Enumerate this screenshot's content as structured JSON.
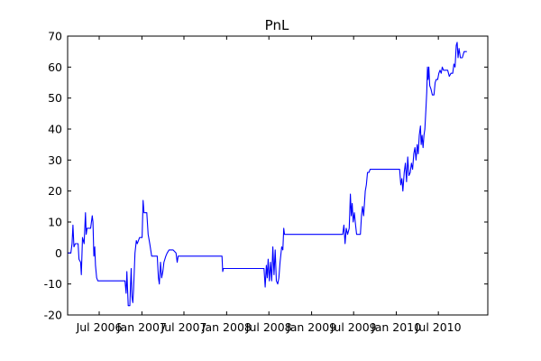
{
  "chart_data": {
    "type": "line",
    "title": "PnL",
    "xlabel": "",
    "ylabel": "",
    "grid": false,
    "ylim": [
      -20,
      70
    ],
    "xlim": [
      "2006-02-15",
      "2011-01-30"
    ],
    "yticks": [
      -20,
      -10,
      0,
      10,
      20,
      30,
      40,
      50,
      60,
      70
    ],
    "xticks": [
      {
        "date": "2006-07-01",
        "label": "Jul 2006"
      },
      {
        "date": "2007-01-01",
        "label": "Jan 2007"
      },
      {
        "date": "2007-07-01",
        "label": "Jul 2007"
      },
      {
        "date": "2008-01-01",
        "label": "Jan 2008"
      },
      {
        "date": "2008-07-01",
        "label": "Jul 2008"
      },
      {
        "date": "2009-01-01",
        "label": "Jan 2009"
      },
      {
        "date": "2009-07-01",
        "label": "Jul 2009"
      },
      {
        "date": "2010-01-01",
        "label": "Jan 2010"
      },
      {
        "date": "2010-07-01",
        "label": "Jul 2010"
      }
    ],
    "series": [
      {
        "color": "#0000ff",
        "points": [
          [
            "2006-02-15",
            0
          ],
          [
            "2006-03-01",
            0
          ],
          [
            "2006-03-06",
            3
          ],
          [
            "2006-03-10",
            9
          ],
          [
            "2006-03-14",
            2
          ],
          [
            "2006-03-20",
            3
          ],
          [
            "2006-04-01",
            3
          ],
          [
            "2006-04-05",
            -2
          ],
          [
            "2006-04-12",
            -3
          ],
          [
            "2006-04-15",
            -7
          ],
          [
            "2006-04-20",
            5
          ],
          [
            "2006-04-27",
            3
          ],
          [
            "2006-05-03",
            13
          ],
          [
            "2006-05-06",
            6
          ],
          [
            "2006-05-10",
            8
          ],
          [
            "2006-05-25",
            8
          ],
          [
            "2006-06-01",
            12
          ],
          [
            "2006-06-04",
            10
          ],
          [
            "2006-06-08",
            -1
          ],
          [
            "2006-06-12",
            2
          ],
          [
            "2006-06-15",
            -4
          ],
          [
            "2006-06-20",
            -8
          ],
          [
            "2006-06-25",
            -9
          ],
          [
            "2006-07-10",
            -9
          ],
          [
            "2006-08-10",
            -9
          ],
          [
            "2006-09-10",
            -9
          ],
          [
            "2006-10-10",
            -9
          ],
          [
            "2006-10-20",
            -9
          ],
          [
            "2006-10-25",
            -13
          ],
          [
            "2006-10-28",
            -6
          ],
          [
            "2006-11-03",
            -17
          ],
          [
            "2006-11-10",
            -17
          ],
          [
            "2006-11-13",
            -10
          ],
          [
            "2006-11-16",
            -5
          ],
          [
            "2006-11-19",
            -14
          ],
          [
            "2006-11-23",
            -16
          ],
          [
            "2006-11-26",
            -12
          ],
          [
            "2006-12-02",
            0
          ],
          [
            "2006-12-08",
            4
          ],
          [
            "2006-12-12",
            3
          ],
          [
            "2006-12-22",
            5
          ],
          [
            "2007-01-02",
            5
          ],
          [
            "2007-01-06",
            17
          ],
          [
            "2007-01-10",
            13
          ],
          [
            "2007-01-22",
            13
          ],
          [
            "2007-01-28",
            6
          ],
          [
            "2007-02-04",
            3
          ],
          [
            "2007-02-12",
            -1
          ],
          [
            "2007-02-18",
            -1
          ],
          [
            "2007-03-08",
            -1
          ],
          [
            "2007-03-13",
            -8
          ],
          [
            "2007-03-17",
            -10
          ],
          [
            "2007-03-22",
            -3
          ],
          [
            "2007-03-27",
            -8
          ],
          [
            "2007-04-01",
            -6
          ],
          [
            "2007-04-06",
            -3
          ],
          [
            "2007-04-14",
            -1
          ],
          [
            "2007-04-20",
            0
          ],
          [
            "2007-04-28",
            1
          ],
          [
            "2007-05-15",
            1
          ],
          [
            "2007-05-28",
            0
          ],
          [
            "2007-06-02",
            -3
          ],
          [
            "2007-06-06",
            -1
          ],
          [
            "2007-06-20",
            -1
          ],
          [
            "2007-07-20",
            -1
          ],
          [
            "2007-08-20",
            -1
          ],
          [
            "2007-09-20",
            -1
          ],
          [
            "2007-10-20",
            -1
          ],
          [
            "2007-11-20",
            -1
          ],
          [
            "2007-12-05",
            -1
          ],
          [
            "2007-12-12",
            -1
          ],
          [
            "2007-12-15",
            -6
          ],
          [
            "2007-12-18",
            -5
          ],
          [
            "2008-01-15",
            -5
          ],
          [
            "2008-02-15",
            -5
          ],
          [
            "2008-03-15",
            -5
          ],
          [
            "2008-04-15",
            -5
          ],
          [
            "2008-05-15",
            -5
          ],
          [
            "2008-06-10",
            -5
          ],
          [
            "2008-06-15",
            -11
          ],
          [
            "2008-06-20",
            -4
          ],
          [
            "2008-06-24",
            -8
          ],
          [
            "2008-06-28",
            -2
          ],
          [
            "2008-07-03",
            -9
          ],
          [
            "2008-07-08",
            -3
          ],
          [
            "2008-07-13",
            -9
          ],
          [
            "2008-07-18",
            2
          ],
          [
            "2008-07-23",
            -7
          ],
          [
            "2008-07-28",
            1
          ],
          [
            "2008-08-02",
            -9
          ],
          [
            "2008-08-08",
            -10
          ],
          [
            "2008-08-13",
            -8
          ],
          [
            "2008-08-18",
            -3
          ],
          [
            "2008-08-25",
            2
          ],
          [
            "2008-08-30",
            1
          ],
          [
            "2008-09-03",
            8
          ],
          [
            "2008-09-06",
            6
          ],
          [
            "2008-10-10",
            6
          ],
          [
            "2008-11-10",
            6
          ],
          [
            "2008-12-10",
            6
          ],
          [
            "2009-01-10",
            6
          ],
          [
            "2009-02-10",
            6
          ],
          [
            "2009-03-10",
            6
          ],
          [
            "2009-04-10",
            6
          ],
          [
            "2009-05-15",
            6
          ],
          [
            "2009-05-20",
            9
          ],
          [
            "2009-05-25",
            3
          ],
          [
            "2009-05-30",
            8
          ],
          [
            "2009-06-05",
            6
          ],
          [
            "2009-06-12",
            8
          ],
          [
            "2009-06-17",
            19
          ],
          [
            "2009-06-21",
            12
          ],
          [
            "2009-06-25",
            16
          ],
          [
            "2009-06-29",
            10
          ],
          [
            "2009-07-04",
            13
          ],
          [
            "2009-07-08",
            10
          ],
          [
            "2009-07-14",
            6
          ],
          [
            "2009-07-30",
            6
          ],
          [
            "2009-08-04",
            12
          ],
          [
            "2009-08-08",
            15
          ],
          [
            "2009-08-13",
            12
          ],
          [
            "2009-08-20",
            20
          ],
          [
            "2009-08-25",
            22
          ],
          [
            "2009-08-30",
            26
          ],
          [
            "2009-09-05",
            26
          ],
          [
            "2009-09-10",
            27
          ],
          [
            "2009-10-10",
            27
          ],
          [
            "2009-11-10",
            27
          ],
          [
            "2009-12-10",
            27
          ],
          [
            "2010-01-10",
            27
          ],
          [
            "2010-01-15",
            27
          ],
          [
            "2010-01-20",
            22
          ],
          [
            "2010-01-25",
            24
          ],
          [
            "2010-01-29",
            20
          ],
          [
            "2010-02-04",
            26
          ],
          [
            "2010-02-09",
            29
          ],
          [
            "2010-02-14",
            23
          ],
          [
            "2010-02-19",
            31
          ],
          [
            "2010-02-24",
            25
          ],
          [
            "2010-03-02",
            26
          ],
          [
            "2010-03-07",
            29
          ],
          [
            "2010-03-12",
            27
          ],
          [
            "2010-03-17",
            32
          ],
          [
            "2010-03-22",
            34
          ],
          [
            "2010-03-27",
            30
          ],
          [
            "2010-04-01",
            35
          ],
          [
            "2010-04-05",
            32
          ],
          [
            "2010-04-10",
            38
          ],
          [
            "2010-04-15",
            41
          ],
          [
            "2010-04-18",
            35
          ],
          [
            "2010-04-22",
            38
          ],
          [
            "2010-04-26",
            34
          ],
          [
            "2010-04-30",
            38
          ],
          [
            "2010-05-04",
            40
          ],
          [
            "2010-05-08",
            46
          ],
          [
            "2010-05-12",
            52
          ],
          [
            "2010-05-15",
            60
          ],
          [
            "2010-05-18",
            56
          ],
          [
            "2010-05-21",
            60
          ],
          [
            "2010-05-25",
            54
          ],
          [
            "2010-05-30",
            53
          ],
          [
            "2010-06-05",
            51
          ],
          [
            "2010-06-12",
            51
          ],
          [
            "2010-06-17",
            55
          ],
          [
            "2010-06-22",
            56
          ],
          [
            "2010-06-28",
            56
          ],
          [
            "2010-07-03",
            58
          ],
          [
            "2010-07-08",
            59
          ],
          [
            "2010-07-13",
            58
          ],
          [
            "2010-07-18",
            60
          ],
          [
            "2010-07-23",
            59
          ],
          [
            "2010-08-10",
            59
          ],
          [
            "2010-08-17",
            57
          ],
          [
            "2010-08-24",
            58
          ],
          [
            "2010-09-01",
            58
          ],
          [
            "2010-09-06",
            61
          ],
          [
            "2010-09-11",
            60
          ],
          [
            "2010-09-16",
            67
          ],
          [
            "2010-09-20",
            68
          ],
          [
            "2010-09-24",
            63
          ],
          [
            "2010-09-28",
            66
          ],
          [
            "2010-10-04",
            63
          ],
          [
            "2010-10-12",
            63
          ],
          [
            "2010-10-20",
            65
          ],
          [
            "2010-11-01",
            65
          ]
        ]
      }
    ]
  }
}
